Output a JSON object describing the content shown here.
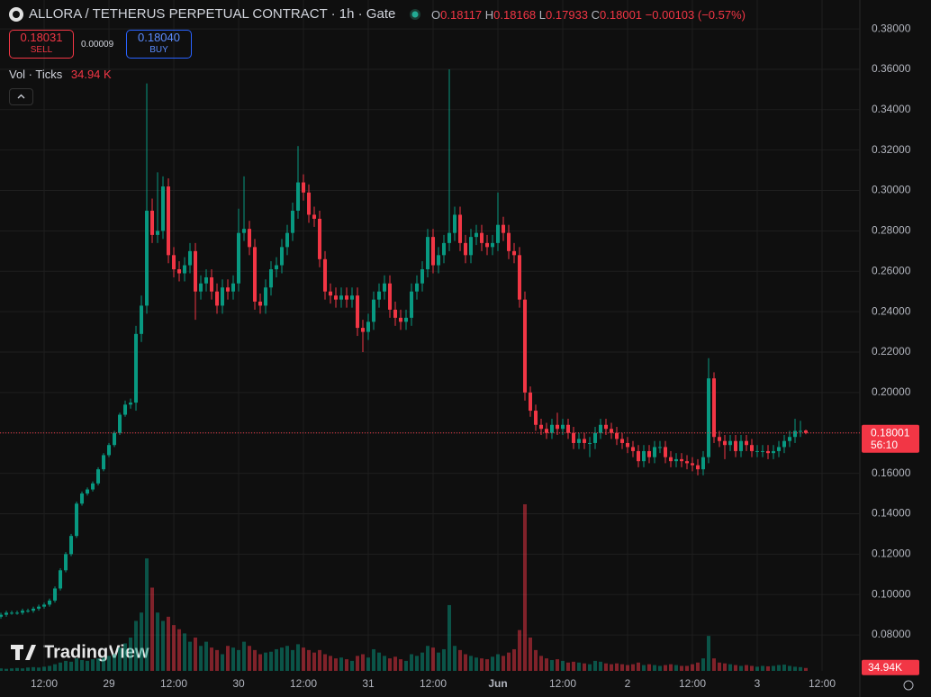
{
  "header": {
    "title": "ALLORA / TETHERUS PERPETUAL CONTRACT · 1h · Gate",
    "o_label": "O",
    "h_label": "H",
    "l_label": "L",
    "c_label": "C",
    "change": "−0.00103 (−0.57%)",
    "sell_price": "0.18031",
    "sell_label": "SELL",
    "spread": "0.00009",
    "buy_price": "0.18040",
    "buy_label": "BUY",
    "vol_title": "Vol · Ticks",
    "vol_value": "34.94 K",
    "watermark": "TradingView",
    "countdown": "56:10",
    "volume_tag": "34.94K"
  },
  "chart_data": {
    "type": "candlestick",
    "up_color": "#089981",
    "down_color": "#f23645",
    "grid": true,
    "xlim": [
      -0.17,
      159
    ],
    "ylim": [
      0.0622,
      0.3943
    ],
    "yticks": [
      {
        "value": 0.08,
        "label": "0.08000"
      },
      {
        "value": 0.1,
        "label": "0.10000"
      },
      {
        "value": 0.12,
        "label": "0.12000"
      },
      {
        "value": 0.14,
        "label": "0.14000"
      },
      {
        "value": 0.16,
        "label": "0.16000"
      },
      {
        "value": 0.18,
        "label": "0.18000"
      },
      {
        "value": 0.2,
        "label": "0.20000"
      },
      {
        "value": 0.22,
        "label": "0.22000"
      },
      {
        "value": 0.24,
        "label": "0.24000"
      },
      {
        "value": 0.26,
        "label": "0.26000"
      },
      {
        "value": 0.28,
        "label": "0.28000"
      },
      {
        "value": 0.3,
        "label": "0.30000"
      },
      {
        "value": 0.32,
        "label": "0.32000"
      },
      {
        "value": 0.34,
        "label": "0.34000"
      },
      {
        "value": 0.36,
        "label": "0.36000"
      },
      {
        "value": 0.38,
        "label": "0.38000"
      }
    ],
    "xticks": [
      {
        "value": 8,
        "label": "12:00"
      },
      {
        "value": 20,
        "label": "29"
      },
      {
        "value": 32,
        "label": "12:00"
      },
      {
        "value": 44,
        "label": "30"
      },
      {
        "value": 56,
        "label": "12:00"
      },
      {
        "value": 68,
        "label": "31"
      },
      {
        "value": 80,
        "label": "12:00"
      },
      {
        "value": 92,
        "label": "Jun"
      },
      {
        "value": 104,
        "label": "12:00"
      },
      {
        "value": 116,
        "label": "2"
      },
      {
        "value": 128,
        "label": "12:00"
      },
      {
        "value": 140,
        "label": "3"
      },
      {
        "value": 152,
        "label": "12:00"
      }
    ],
    "ohlc": [
      [
        0.089,
        0.091,
        0.088,
        0.09
      ],
      [
        0.09,
        0.092,
        0.089,
        0.091
      ],
      [
        0.091,
        0.092,
        0.09,
        0.091
      ],
      [
        0.091,
        0.092,
        0.09,
        0.091
      ],
      [
        0.091,
        0.093,
        0.09,
        0.092
      ],
      [
        0.092,
        0.093,
        0.091,
        0.092
      ],
      [
        0.092,
        0.094,
        0.091,
        0.093
      ],
      [
        0.093,
        0.095,
        0.092,
        0.094
      ],
      [
        0.094,
        0.096,
        0.093,
        0.095
      ],
      [
        0.095,
        0.098,
        0.094,
        0.097
      ],
      [
        0.097,
        0.104,
        0.096,
        0.103
      ],
      [
        0.103,
        0.113,
        0.102,
        0.112
      ],
      [
        0.112,
        0.121,
        0.111,
        0.12
      ],
      [
        0.12,
        0.13,
        0.119,
        0.129
      ],
      [
        0.129,
        0.146,
        0.128,
        0.145
      ],
      [
        0.145,
        0.151,
        0.144,
        0.15
      ],
      [
        0.15,
        0.153,
        0.149,
        0.152
      ],
      [
        0.152,
        0.156,
        0.151,
        0.155
      ],
      [
        0.155,
        0.163,
        0.154,
        0.162
      ],
      [
        0.162,
        0.17,
        0.161,
        0.169
      ],
      [
        0.169,
        0.175,
        0.168,
        0.174
      ],
      [
        0.174,
        0.181,
        0.173,
        0.18
      ],
      [
        0.18,
        0.19,
        0.179,
        0.189
      ],
      [
        0.189,
        0.196,
        0.188,
        0.194
      ],
      [
        0.194,
        0.197,
        0.192,
        0.195
      ],
      [
        0.195,
        0.233,
        0.191,
        0.229
      ],
      [
        0.229,
        0.248,
        0.225,
        0.243
      ],
      [
        0.243,
        0.353,
        0.239,
        0.29
      ],
      [
        0.29,
        0.296,
        0.274,
        0.278
      ],
      [
        0.278,
        0.309,
        0.274,
        0.28
      ],
      [
        0.28,
        0.307,
        0.276,
        0.302
      ],
      [
        0.302,
        0.306,
        0.264,
        0.268
      ],
      [
        0.268,
        0.272,
        0.257,
        0.261
      ],
      [
        0.261,
        0.265,
        0.255,
        0.259
      ],
      [
        0.259,
        0.267,
        0.255,
        0.263
      ],
      [
        0.263,
        0.274,
        0.259,
        0.27
      ],
      [
        0.27,
        0.274,
        0.236,
        0.25
      ],
      [
        0.25,
        0.258,
        0.246,
        0.254
      ],
      [
        0.254,
        0.261,
        0.25,
        0.257
      ],
      [
        0.257,
        0.261,
        0.246,
        0.25
      ],
      [
        0.25,
        0.254,
        0.239,
        0.243
      ],
      [
        0.243,
        0.256,
        0.239,
        0.252
      ],
      [
        0.252,
        0.256,
        0.246,
        0.25
      ],
      [
        0.25,
        0.258,
        0.246,
        0.254
      ],
      [
        0.254,
        0.291,
        0.25,
        0.279
      ],
      [
        0.279,
        0.307,
        0.275,
        0.281
      ],
      [
        0.281,
        0.285,
        0.268,
        0.272
      ],
      [
        0.272,
        0.276,
        0.241,
        0.245
      ],
      [
        0.245,
        0.249,
        0.239,
        0.243
      ],
      [
        0.243,
        0.256,
        0.239,
        0.252
      ],
      [
        0.252,
        0.265,
        0.248,
        0.261
      ],
      [
        0.261,
        0.267,
        0.257,
        0.263
      ],
      [
        0.263,
        0.276,
        0.259,
        0.272
      ],
      [
        0.272,
        0.283,
        0.268,
        0.279
      ],
      [
        0.279,
        0.294,
        0.275,
        0.29
      ],
      [
        0.29,
        0.322,
        0.286,
        0.304
      ],
      [
        0.304,
        0.308,
        0.295,
        0.299
      ],
      [
        0.299,
        0.303,
        0.284,
        0.288
      ],
      [
        0.288,
        0.292,
        0.282,
        0.286
      ],
      [
        0.286,
        0.29,
        0.262,
        0.266
      ],
      [
        0.266,
        0.27,
        0.246,
        0.25
      ],
      [
        0.25,
        0.254,
        0.244,
        0.248
      ],
      [
        0.248,
        0.252,
        0.242,
        0.246
      ],
      [
        0.246,
        0.252,
        0.242,
        0.248
      ],
      [
        0.248,
        0.252,
        0.242,
        0.246
      ],
      [
        0.246,
        0.252,
        0.242,
        0.248
      ],
      [
        0.248,
        0.252,
        0.228,
        0.232
      ],
      [
        0.232,
        0.236,
        0.22,
        0.23
      ],
      [
        0.23,
        0.239,
        0.226,
        0.235
      ],
      [
        0.235,
        0.25,
        0.231,
        0.246
      ],
      [
        0.246,
        0.254,
        0.242,
        0.25
      ],
      [
        0.25,
        0.258,
        0.246,
        0.254
      ],
      [
        0.254,
        0.258,
        0.237,
        0.241
      ],
      [
        0.241,
        0.245,
        0.233,
        0.237
      ],
      [
        0.237,
        0.241,
        0.231,
        0.235
      ],
      [
        0.235,
        0.241,
        0.231,
        0.237
      ],
      [
        0.237,
        0.254,
        0.233,
        0.25
      ],
      [
        0.25,
        0.258,
        0.246,
        0.254
      ],
      [
        0.254,
        0.265,
        0.25,
        0.261
      ],
      [
        0.261,
        0.281,
        0.257,
        0.277
      ],
      [
        0.277,
        0.281,
        0.259,
        0.263
      ],
      [
        0.263,
        0.272,
        0.259,
        0.268
      ],
      [
        0.268,
        0.278,
        0.264,
        0.274
      ],
      [
        0.274,
        0.36,
        0.27,
        0.279
      ],
      [
        0.279,
        0.292,
        0.275,
        0.288
      ],
      [
        0.288,
        0.292,
        0.27,
        0.274
      ],
      [
        0.274,
        0.278,
        0.264,
        0.268
      ],
      [
        0.268,
        0.281,
        0.264,
        0.277
      ],
      [
        0.277,
        0.283,
        0.273,
        0.279
      ],
      [
        0.279,
        0.283,
        0.27,
        0.274
      ],
      [
        0.274,
        0.278,
        0.268,
        0.272
      ],
      [
        0.272,
        0.278,
        0.268,
        0.274
      ],
      [
        0.274,
        0.299,
        0.27,
        0.283
      ],
      [
        0.283,
        0.287,
        0.275,
        0.279
      ],
      [
        0.279,
        0.283,
        0.266,
        0.27
      ],
      [
        0.27,
        0.274,
        0.264,
        0.268
      ],
      [
        0.268,
        0.272,
        0.242,
        0.246
      ],
      [
        0.246,
        0.25,
        0.196,
        0.2
      ],
      [
        0.2,
        0.203,
        0.188,
        0.191
      ],
      [
        0.191,
        0.194,
        0.181,
        0.184
      ],
      [
        0.184,
        0.187,
        0.179,
        0.182
      ],
      [
        0.182,
        0.185,
        0.177,
        0.18
      ],
      [
        0.18,
        0.187,
        0.177,
        0.184
      ],
      [
        0.184,
        0.19,
        0.179,
        0.182
      ],
      [
        0.182,
        0.187,
        0.179,
        0.184
      ],
      [
        0.184,
        0.187,
        0.177,
        0.18
      ],
      [
        0.18,
        0.183,
        0.172,
        0.175
      ],
      [
        0.175,
        0.18,
        0.172,
        0.177
      ],
      [
        0.177,
        0.18,
        0.172,
        0.175
      ],
      [
        0.175,
        0.178,
        0.168,
        0.175
      ],
      [
        0.175,
        0.183,
        0.172,
        0.18
      ],
      [
        0.18,
        0.187,
        0.177,
        0.184
      ],
      [
        0.184,
        0.187,
        0.179,
        0.182
      ],
      [
        0.182,
        0.185,
        0.177,
        0.18
      ],
      [
        0.18,
        0.183,
        0.174,
        0.177
      ],
      [
        0.177,
        0.18,
        0.172,
        0.175
      ],
      [
        0.175,
        0.178,
        0.17,
        0.173
      ],
      [
        0.173,
        0.176,
        0.168,
        0.171
      ],
      [
        0.171,
        0.174,
        0.163,
        0.166
      ],
      [
        0.166,
        0.174,
        0.163,
        0.171
      ],
      [
        0.171,
        0.174,
        0.165,
        0.168
      ],
      [
        0.168,
        0.176,
        0.165,
        0.173
      ],
      [
        0.173,
        0.176,
        0.17,
        0.173
      ],
      [
        0.173,
        0.176,
        0.165,
        0.168
      ],
      [
        0.168,
        0.171,
        0.163,
        0.166
      ],
      [
        0.166,
        0.17,
        0.163,
        0.167
      ],
      [
        0.167,
        0.17,
        0.163,
        0.166
      ],
      [
        0.166,
        0.169,
        0.162,
        0.165
      ],
      [
        0.165,
        0.168,
        0.161,
        0.164
      ],
      [
        0.164,
        0.167,
        0.159,
        0.162
      ],
      [
        0.162,
        0.171,
        0.159,
        0.168
      ],
      [
        0.168,
        0.217,
        0.165,
        0.207
      ],
      [
        0.207,
        0.21,
        0.175,
        0.178
      ],
      [
        0.178,
        0.181,
        0.173,
        0.176
      ],
      [
        0.176,
        0.179,
        0.167,
        0.174
      ],
      [
        0.174,
        0.179,
        0.171,
        0.176
      ],
      [
        0.176,
        0.179,
        0.168,
        0.171
      ],
      [
        0.171,
        0.179,
        0.168,
        0.176
      ],
      [
        0.176,
        0.179,
        0.171,
        0.174
      ],
      [
        0.174,
        0.177,
        0.168,
        0.171
      ],
      [
        0.171,
        0.174,
        0.168,
        0.171
      ],
      [
        0.171,
        0.174,
        0.168,
        0.171
      ],
      [
        0.171,
        0.174,
        0.167,
        0.17
      ],
      [
        0.17,
        0.174,
        0.167,
        0.171
      ],
      [
        0.171,
        0.176,
        0.168,
        0.173
      ],
      [
        0.173,
        0.179,
        0.17,
        0.176
      ],
      [
        0.176,
        0.181,
        0.173,
        0.178
      ],
      [
        0.178,
        0.187,
        0.175,
        0.181
      ],
      [
        0.181,
        0.186,
        0.178,
        0.181
      ],
      [
        0.18117,
        0.18168,
        0.17933,
        0.18001
      ]
    ],
    "volumes": [
      30,
      25,
      30,
      35,
      30,
      40,
      45,
      40,
      50,
      60,
      80,
      100,
      120,
      110,
      150,
      130,
      120,
      140,
      150,
      160,
      180,
      200,
      280,
      330,
      400,
      600,
      700,
      1350,
      1000,
      700,
      600,
      650,
      550,
      500,
      450,
      350,
      400,
      300,
      350,
      280,
      250,
      200,
      300,
      280,
      250,
      350,
      300,
      250,
      200,
      220,
      230,
      260,
      280,
      300,
      250,
      320,
      280,
      250,
      220,
      250,
      200,
      180,
      150,
      160,
      140,
      120,
      180,
      200,
      160,
      260,
      220,
      180,
      150,
      170,
      140,
      120,
      200,
      180,
      220,
      300,
      280,
      220,
      260,
      790,
      300,
      250,
      200,
      180,
      160,
      150,
      140,
      170,
      200,
      180,
      220,
      260,
      490,
      2000,
      400,
      250,
      180,
      150,
      130,
      140,
      120,
      100,
      110,
      100,
      90,
      80,
      120,
      110,
      90,
      80,
      90,
      80,
      70,
      80,
      100,
      70,
      80,
      70,
      60,
      70,
      80,
      70,
      60,
      60,
      80,
      100,
      150,
      420,
      150,
      100,
      90,
      80,
      70,
      60,
      70,
      60,
      50,
      60,
      55,
      60,
      70,
      75,
      60,
      50,
      45,
      34.94
    ]
  }
}
